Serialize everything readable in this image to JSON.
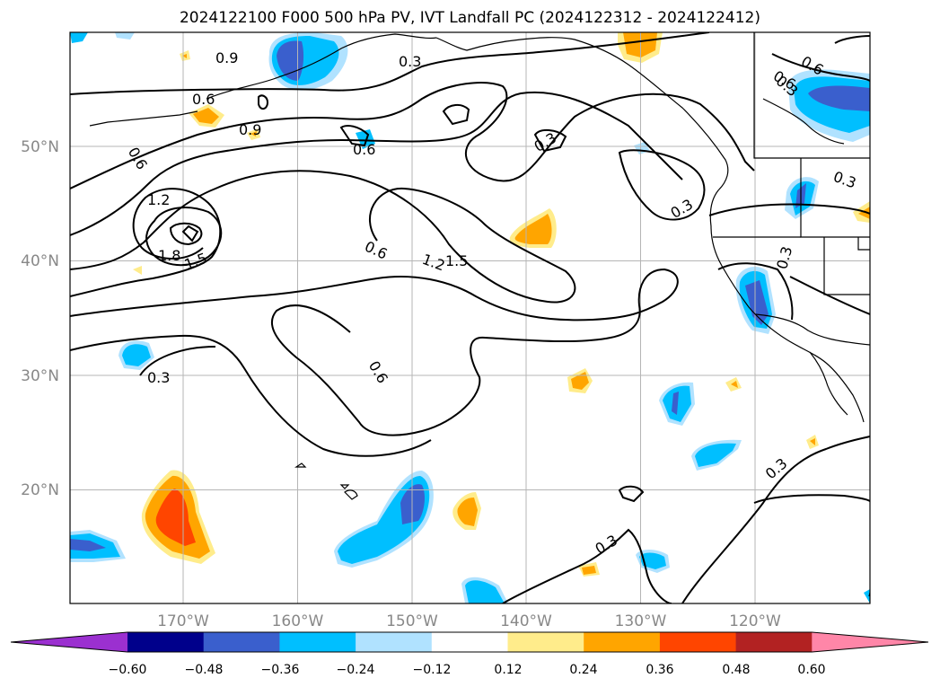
{
  "title": "2024122100 F000 500 hPa PV, IVT Landfall PC (2024122312 - 2024122412)",
  "chart_data": {
    "type": "map",
    "title": "2024122100 F000 500 hPa PV, IVT Landfall PC (2024122312 - 2024122412)",
    "lon_ticks": [
      "170°W",
      "160°W",
      "150°W",
      "140°W",
      "130°W",
      "120°W"
    ],
    "lat_ticks": [
      "50°N",
      "40°N",
      "30°N",
      "20°N"
    ],
    "extent": {
      "lon": [
        -180,
        -110
      ],
      "lat": [
        10,
        60
      ]
    },
    "grid": true,
    "contour_labels": [
      "0.9",
      "0.3",
      "0.6",
      "0.6",
      "0.9",
      "0.6",
      "0.6",
      "1.2",
      "1.8",
      "1.5",
      "0.6",
      "1.2",
      "1.5",
      "0.3",
      "0.3",
      "0.6",
      "0.3",
      "0.3",
      "0.3",
      "0.3",
      "0.3",
      "0.6",
      "0.3"
    ],
    "colorbar": {
      "ticks": [
        "−0.60",
        "−0.48",
        "−0.36",
        "−0.24",
        "−0.12",
        "0.12",
        "0.24",
        "0.36",
        "0.48",
        "0.60"
      ],
      "colors": [
        "#9b30d0",
        "#00008b",
        "#3a5fcd",
        "#00bfff",
        "#b0e2ff",
        "#ffffff",
        "#ffec8b",
        "#ffa500",
        "#ff4500",
        "#b22222",
        "#ff86a8"
      ],
      "extend": "both"
    }
  }
}
